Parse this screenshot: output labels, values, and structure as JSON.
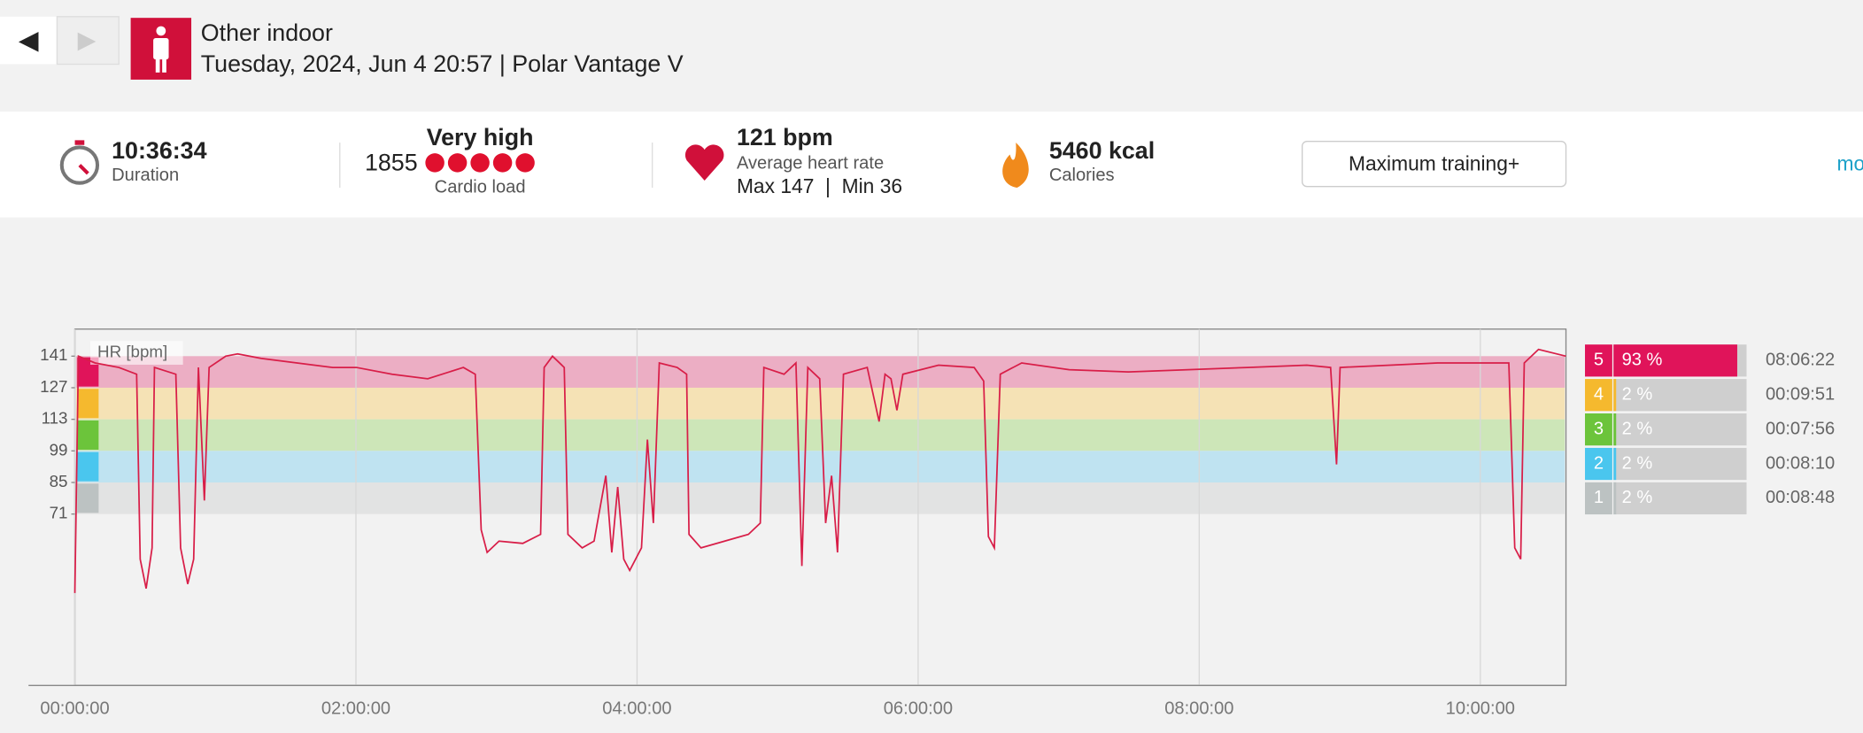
{
  "nav": {
    "back": "◀",
    "forward": "▶"
  },
  "header": {
    "title": "Other indoor",
    "subtitle": "Tuesday, 2024, Jun 4 20:57 | Polar Vantage V"
  },
  "summary": {
    "duration": "10:36:34",
    "duration_label": "Duration",
    "cardio_level": "Very high",
    "cardio_value": "1855",
    "cardio_label": "Cardio load",
    "hr": "121 bpm",
    "hr_label": "Average heart rate",
    "hr_minmax": "Max 147  |  Min 36",
    "calories": "5460 kcal",
    "calories_label": "Calories",
    "benefit": "Maximum training+",
    "more": "mo"
  },
  "chart_data": [
    {
      "type": "line",
      "y_label": "HR [bpm]",
      "color": "#d81e48",
      "x": [
        0,
        91,
        517,
        1126,
        1582,
        1674,
        1826,
        1978,
        2039,
        2587,
        2708,
        2891,
        3043,
        3165,
        3317,
        3439,
        3865,
        4169,
        4778,
        5690,
        6603,
        7212,
        8125,
        9038,
        9951,
        10255,
        10407,
        10559,
        10864,
        11472,
        11929,
        12020,
        12233,
        12537,
        12629,
        12994,
        13298,
        13602,
        13754,
        13906,
        14059,
        14211,
        14515,
        14667,
        14819,
        14971,
        15428,
        15671,
        15732,
        16037,
        16645,
        17254,
        17558,
        17649,
        18167,
        18471,
        18623,
        18775,
        19080,
        19232,
        19384,
        19536,
        19688,
        20297,
        20601,
        20753,
        20905,
        21058,
        21210,
        22123,
        23036,
        23279,
        23401,
        23553,
        23705,
        24253,
        25470,
        26991,
        28513,
        30034,
        31556,
        32165,
        32317,
        32408,
        33686,
        34903,
        36729,
        36881,
        37034,
        37125,
        37490,
        38190
      ],
      "values": [
        36,
        141,
        138,
        136,
        133,
        51,
        38,
        56,
        136,
        133,
        56,
        40,
        51,
        136,
        77,
        136,
        141,
        142,
        140,
        138,
        136,
        136,
        133,
        131,
        136,
        133,
        64,
        54,
        59,
        58,
        62,
        136,
        141,
        136,
        62,
        56,
        59,
        88,
        54,
        83,
        51,
        46,
        56,
        104,
        67,
        138,
        136,
        133,
        62,
        56,
        59,
        62,
        67,
        136,
        133,
        138,
        48,
        136,
        131,
        67,
        88,
        54,
        133,
        136,
        112,
        133,
        131,
        117,
        133,
        137,
        136,
        130,
        61,
        56,
        133,
        138,
        135,
        134,
        135,
        136,
        137,
        136,
        93,
        136,
        137,
        138,
        138,
        56,
        51,
        138,
        144,
        141
      ],
      "xlim": [
        0,
        38194
      ],
      "ylim": [
        -5,
        153
      ],
      "xticks": [
        {
          "value": 0,
          "label": "00:00:00"
        },
        {
          "value": 7200,
          "label": "02:00:00"
        },
        {
          "value": 14400,
          "label": "04:00:00"
        },
        {
          "value": 21600,
          "label": "06:00:00"
        },
        {
          "value": 28800,
          "label": "08:00:00"
        },
        {
          "value": 36000,
          "label": "10:00:00"
        }
      ],
      "yticks": [
        141,
        127,
        113,
        99,
        85,
        71
      ],
      "zone_colors": [
        "#e0145a",
        "#f5b92e",
        "#6cc43b",
        "#4ac6ee",
        "#bcc2c2"
      ],
      "band_colors": [
        "#ecaec4",
        "#f5e2b5",
        "#cde6b8",
        "#bfe3f1",
        "#e2e3e3"
      ]
    },
    {
      "type": "bar",
      "orientation": "horizontal",
      "categories": [
        "5",
        "4",
        "3",
        "2",
        "1"
      ],
      "values": [
        93,
        2,
        2,
        2,
        2
      ],
      "value_labels": [
        "93 %",
        "2 %",
        "2 %",
        "2 %",
        "2 %"
      ],
      "durations": [
        "08:06:22",
        "00:09:51",
        "00:07:56",
        "00:08:10",
        "00:08:48"
      ],
      "colors": [
        "#e0145a",
        "#f5b92e",
        "#6cc43b",
        "#4ac6ee",
        "#bcc2c2"
      ],
      "xlim": [
        0,
        100
      ]
    }
  ]
}
